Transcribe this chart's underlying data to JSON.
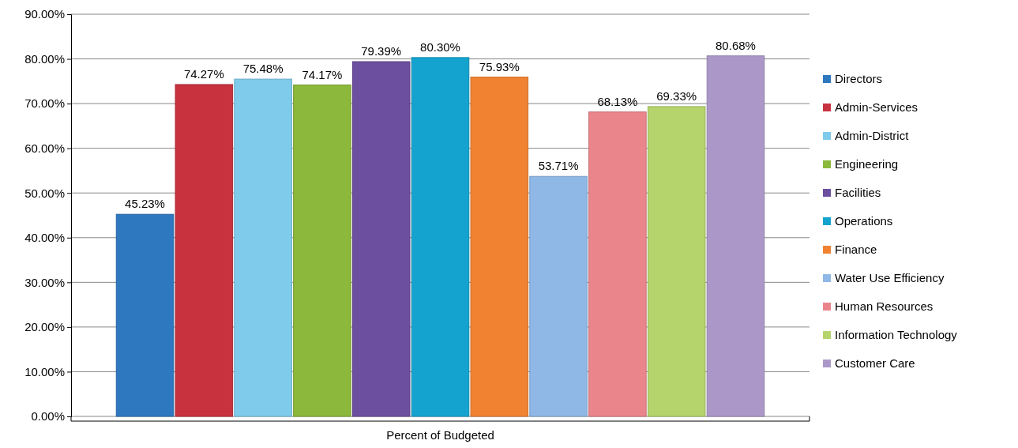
{
  "chart_data": {
    "type": "bar",
    "categories": [
      "Percent of Budgeted"
    ],
    "series": [
      {
        "name": "Directors",
        "color": "#2e78c0",
        "values": [
          45.23
        ],
        "value_labels": [
          "45.23%"
        ]
      },
      {
        "name": "Admin-Services",
        "color": "#c8323f",
        "values": [
          74.27
        ],
        "value_labels": [
          "74.27%"
        ]
      },
      {
        "name": "Admin-District",
        "color": "#7fcbec",
        "values": [
          75.48
        ],
        "value_labels": [
          "75.48%"
        ]
      },
      {
        "name": "Engineering",
        "color": "#8cb83c",
        "values": [
          74.17
        ],
        "value_labels": [
          "74.17%"
        ]
      },
      {
        "name": "Facilities",
        "color": "#6d4f9f",
        "values": [
          79.39
        ],
        "value_labels": [
          "79.39%"
        ]
      },
      {
        "name": "Operations",
        "color": "#14a3cf",
        "values": [
          80.3
        ],
        "value_labels": [
          "80.30%"
        ]
      },
      {
        "name": "Finance",
        "color": "#f08232",
        "values": [
          75.93
        ],
        "value_labels": [
          "75.93%"
        ]
      },
      {
        "name": "Water Use Efficiency",
        "color": "#8fb8e6",
        "values": [
          53.71
        ],
        "value_labels": [
          "53.71%"
        ]
      },
      {
        "name": "Human Resources",
        "color": "#ea858c",
        "values": [
          68.13
        ],
        "value_labels": [
          "68.13%"
        ]
      },
      {
        "name": "Information Technology",
        "color": "#b5d46c",
        "values": [
          69.33
        ],
        "value_labels": [
          "69.33%"
        ]
      },
      {
        "name": "Customer Care",
        "color": "#ab98c8",
        "values": [
          80.68
        ],
        "value_labels": [
          "80.68%"
        ]
      }
    ],
    "ylim": [
      0,
      90
    ],
    "yticks": [
      {
        "value": 0,
        "label": "0.00%"
      },
      {
        "value": 10,
        "label": "10.00%"
      },
      {
        "value": 20,
        "label": "20.00%"
      },
      {
        "value": 30,
        "label": "30.00%"
      },
      {
        "value": 40,
        "label": "40.00%"
      },
      {
        "value": 50,
        "label": "50.00%"
      },
      {
        "value": 60,
        "label": "60.00%"
      },
      {
        "value": 70,
        "label": "70.00%"
      },
      {
        "value": 80,
        "label": "80.00%"
      },
      {
        "value": 90,
        "label": "90.00%"
      }
    ],
    "grid": "y",
    "legend": "right"
  }
}
